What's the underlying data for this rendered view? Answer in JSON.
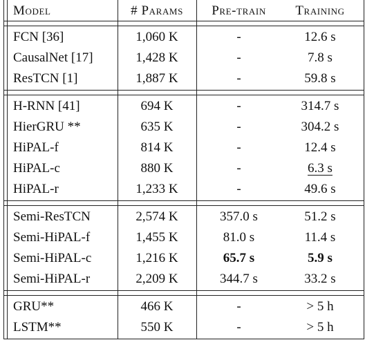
{
  "header": {
    "model": "Model",
    "params": "# Params",
    "pretrain": "Pre-train",
    "training": "Training"
  },
  "groups": [
    [
      {
        "model": "FCN [36]",
        "params": "1,060 K",
        "pretrain": "-",
        "training": "12.6 s"
      },
      {
        "model": "CausalNet [17]",
        "params": "1,428 K",
        "pretrain": "-",
        "training": "7.8 s"
      },
      {
        "model": "ResTCN [1]",
        "params": "1,887 K",
        "pretrain": "-",
        "training": "59.8 s"
      }
    ],
    [
      {
        "model": "H-RNN [41]",
        "params": "694 K",
        "pretrain": "-",
        "training": "314.7 s"
      },
      {
        "model": "HierGRU **",
        "params": "635 K",
        "pretrain": "-",
        "training": "304.2 s"
      },
      {
        "model": "HiPAL-f",
        "params": "814 K",
        "pretrain": "-",
        "training": "12.4 s"
      },
      {
        "model": "HiPAL-c",
        "params": "880 K",
        "pretrain": "-",
        "training": "6.3 s"
      },
      {
        "model": "HiPAL-r",
        "params": "1,233 K",
        "pretrain": "-",
        "training": "49.6 s"
      }
    ],
    [
      {
        "model": "Semi-ResTCN",
        "params": "2,574 K",
        "pretrain": "357.0 s",
        "training": "51.2 s"
      },
      {
        "model": "Semi-HiPAL-f",
        "params": "1,455 K",
        "pretrain": "81.0 s",
        "training": "11.4 s"
      },
      {
        "model": "Semi-HiPAL-c",
        "params": "1,216 K",
        "pretrain": "65.7 s",
        "training": "5.9 s"
      },
      {
        "model": "Semi-HiPAL-r",
        "params": "2,209 K",
        "pretrain": "344.7 s",
        "training": "33.2 s"
      }
    ],
    [
      {
        "model": "GRU**",
        "params": "466 K",
        "pretrain": "-",
        "training": "> 5 h"
      },
      {
        "model": "LSTM**",
        "params": "550 K",
        "pretrain": "-",
        "training": "> 5 h"
      }
    ]
  ]
}
